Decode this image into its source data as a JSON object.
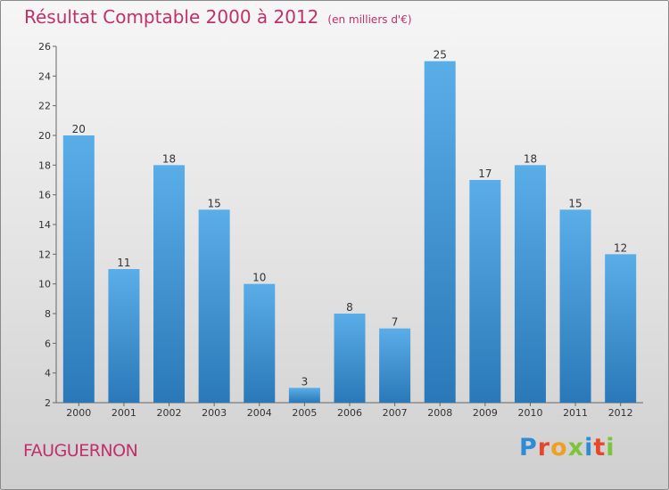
{
  "header": {
    "title": "Résultat Comptable 2000 à 2012",
    "subtitle": "(en milliers d'€)"
  },
  "footer": {
    "commune": "FAUGUERNON",
    "logo": "Proxiti"
  },
  "colors": {
    "title": "#c0306a",
    "bar_top": "#5aaee8",
    "bar_bottom": "#2a78b8"
  },
  "chart_data": {
    "type": "bar",
    "title": "Résultat Comptable 2000 à 2012",
    "subtitle": "(en milliers d'€)",
    "categories": [
      "2000",
      "2001",
      "2002",
      "2003",
      "2004",
      "2005",
      "2006",
      "2007",
      "2008",
      "2009",
      "2010",
      "2011",
      "2012"
    ],
    "values": [
      20,
      11,
      18,
      15,
      10,
      3,
      8,
      7,
      25,
      17,
      18,
      15,
      12
    ],
    "data_labels": [
      "20",
      "11",
      "18",
      "15",
      "10",
      "3",
      "8",
      "7",
      "25",
      "17",
      "18",
      "15",
      "12"
    ],
    "yticks": [
      "2",
      "4",
      "6",
      "8",
      "10",
      "12",
      "14",
      "16",
      "18",
      "20",
      "22",
      "24",
      "26"
    ],
    "ylim": [
      2,
      26
    ],
    "grid": false,
    "legend": "none"
  }
}
